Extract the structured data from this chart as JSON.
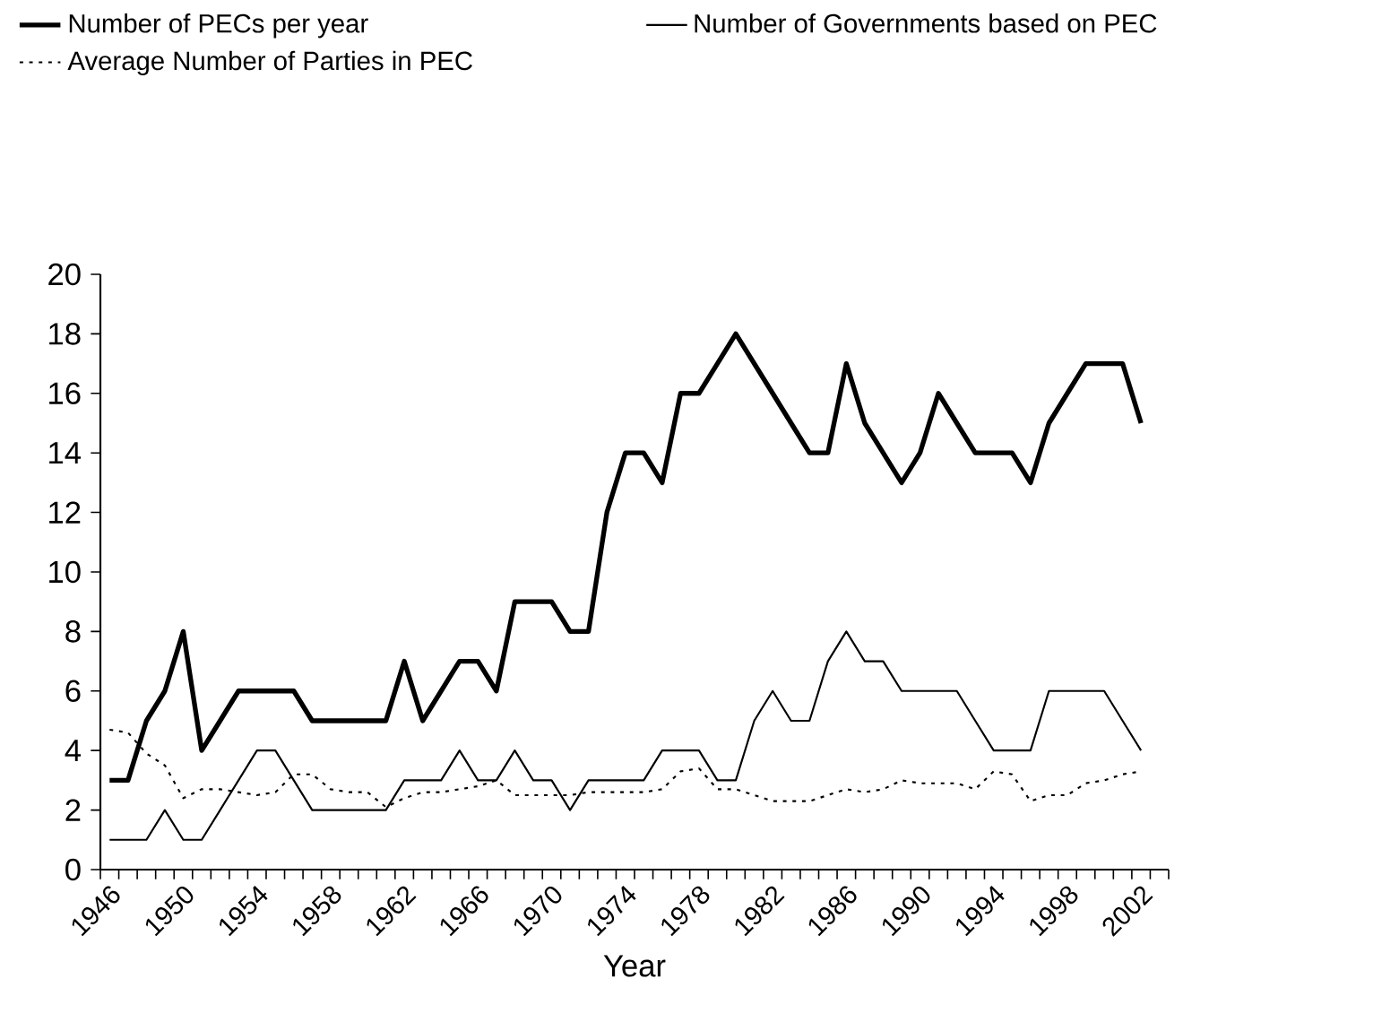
{
  "chart_data": {
    "type": "line",
    "xlabel": "Year",
    "categories": [
      "1946",
      null,
      null,
      null,
      "1950",
      null,
      null,
      null,
      "1954",
      null,
      null,
      null,
      "1958",
      null,
      null,
      null,
      "1962",
      null,
      null,
      null,
      "1966",
      null,
      null,
      null,
      "1970",
      null,
      null,
      null,
      "1974",
      null,
      null,
      null,
      "1978",
      null,
      null,
      null,
      "1982",
      null,
      null,
      null,
      "1986",
      null,
      null,
      null,
      "1990",
      null,
      null,
      null,
      "1994",
      null,
      null,
      null,
      "1998",
      null,
      null,
      null,
      "2002",
      null
    ],
    "ylim": [
      0,
      20
    ],
    "yticks": [
      0,
      2,
      4,
      6,
      8,
      10,
      12,
      14,
      16,
      18,
      20
    ],
    "legend": "top",
    "grid": false,
    "marker": "none",
    "series": [
      {
        "name": "Number of PECs per year",
        "color": "#000000",
        "line_style": "solid",
        "values": [
          3,
          3,
          5,
          6,
          8,
          4,
          5,
          6,
          6,
          6,
          6,
          5,
          5,
          5,
          5,
          5,
          7,
          5,
          6,
          7,
          7,
          6,
          9,
          9,
          9,
          8,
          8,
          12,
          14,
          14,
          13,
          16,
          16,
          17,
          18,
          17,
          16,
          15,
          14,
          14,
          17,
          15,
          14,
          13,
          14,
          16,
          15,
          14,
          14,
          14,
          13,
          15,
          16,
          17,
          17,
          17,
          15,
          null
        ]
      },
      {
        "name": "Number of Governments based on PEC",
        "color": "#000000",
        "line_style": "solid",
        "values": [
          1,
          1,
          1,
          2,
          1,
          1,
          2,
          3,
          4,
          4,
          3,
          2,
          2,
          2,
          2,
          2,
          3,
          3,
          3,
          4,
          3,
          3,
          4,
          3,
          3,
          2,
          3,
          3,
          3,
          3,
          4,
          4,
          4,
          3,
          3,
          5,
          6,
          5,
          5,
          7,
          8,
          7,
          7,
          6,
          6,
          6,
          6,
          5,
          4,
          4,
          4,
          6,
          6,
          6,
          6,
          5,
          4,
          null
        ]
      },
      {
        "name": "Average Number of Parties in PEC",
        "color": "#000000",
        "line_style": "dotted",
        "values": [
          4.7,
          4.6,
          3.9,
          3.5,
          2.4,
          2.7,
          2.7,
          2.6,
          2.5,
          2.6,
          3.2,
          3.2,
          2.7,
          2.6,
          2.6,
          2.1,
          2.4,
          2.6,
          2.6,
          2.7,
          2.8,
          3.0,
          2.5,
          2.5,
          2.5,
          2.5,
          2.6,
          2.6,
          2.6,
          2.6,
          2.7,
          3.3,
          3.4,
          2.7,
          2.7,
          2.5,
          2.3,
          2.3,
          2.3,
          2.5,
          2.7,
          2.6,
          2.7,
          3.0,
          2.9,
          2.9,
          2.9,
          2.7,
          3.3,
          3.2,
          2.3,
          2.5,
          2.5,
          2.9,
          3.0,
          3.2,
          3.3,
          null
        ]
      }
    ]
  }
}
